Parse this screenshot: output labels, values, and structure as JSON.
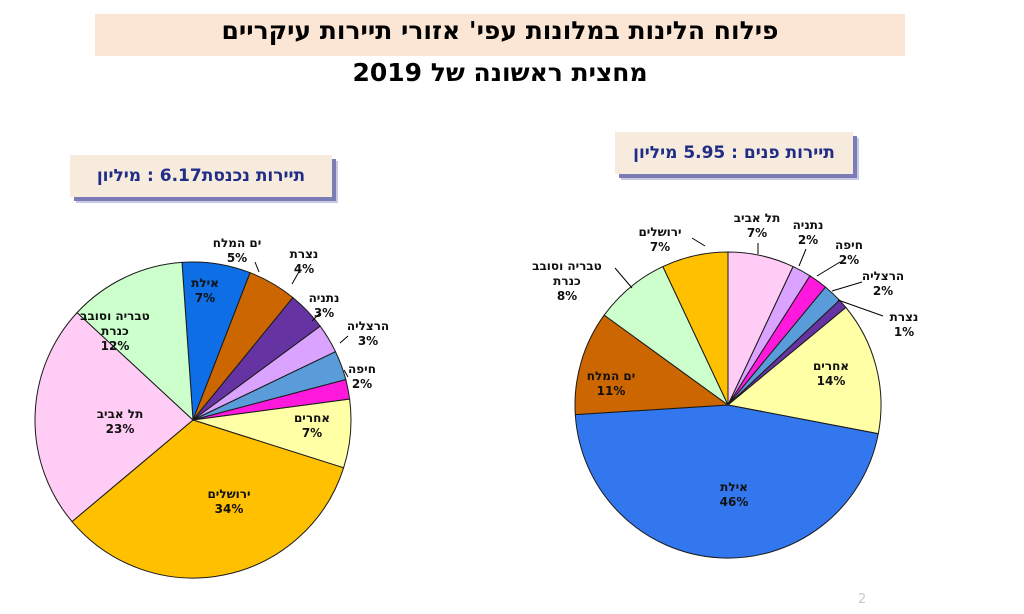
{
  "title": "פילוח הלינות במלונות עפי' אזורי תיירות עיקריים",
  "subtitle": "מחצית ראשונה של 2019",
  "page_number": "2",
  "chart_data": [
    {
      "type": "pie",
      "title": "תיירות נכנסת6.17 :  מיליון",
      "start_category": "אילת",
      "direction": "clockwise",
      "categories": [
        "אילת",
        "ים המלח",
        "נצרת",
        "נתניה",
        "הרצליה",
        "חיפה",
        "אחרים",
        "ירושלים",
        "תל אביב",
        "טבריה וסובב כנרת"
      ],
      "values": [
        7,
        5,
        4,
        3,
        3,
        2,
        7,
        34,
        23,
        12
      ],
      "labels": [
        [
          "אילת",
          "7%"
        ],
        [
          "ים המלח",
          "5%"
        ],
        [
          "נצרת",
          "4%"
        ],
        [
          "נתניה",
          "3%"
        ],
        [
          "הרצליה",
          "3%"
        ],
        [
          "חיפה",
          "2%"
        ],
        [
          "אחרים",
          "7%"
        ],
        [
          "ירושלים",
          "34%"
        ],
        [
          "תל אביב",
          "23%"
        ],
        [
          "טבריה וסובב",
          "כנרת",
          "12%"
        ]
      ],
      "colors": [
        "#0d6ee6",
        "#cc6600",
        "#6633a3",
        "#d9a3ff",
        "#5a9bd9",
        "#ff19dc",
        "#ffffa6",
        "#ffc000",
        "#ffccf5",
        "#ccffcc"
      ]
    },
    {
      "type": "pie",
      "title": "תיירות פנים : 5.95 מיליון",
      "start_category": "תל אביב",
      "direction": "clockwise",
      "categories": [
        "תל אביב",
        "נתניה",
        "חיפה",
        "הרצליה",
        "נצרת",
        "אחרים",
        "אילת",
        "ים המלח",
        "טבריה וסובב כנרת",
        "ירושלים"
      ],
      "values": [
        7,
        2,
        2,
        2,
        1,
        14,
        46,
        11,
        8,
        7
      ],
      "labels": [
        [
          "תל אביב",
          "7%"
        ],
        [
          "נתניה",
          "2%"
        ],
        [
          "חיפה",
          "2%"
        ],
        [
          "הרצליה",
          "2%"
        ],
        [
          "נצרת",
          "1%"
        ],
        [
          "אחרים",
          "14%"
        ],
        [
          "אילת",
          "46%"
        ],
        [
          "ים המלח",
          "11%"
        ],
        [
          "טבריה וסובב",
          "כנרת",
          "8%"
        ],
        [
          "ירושלים",
          "7%"
        ]
      ],
      "colors": [
        "#ffccf5",
        "#d9a3ff",
        "#ff19dc",
        "#5a9bd9",
        "#6633a3",
        "#ffffa6",
        "#3377ee",
        "#cc6600",
        "#ccffcc",
        "#ffc000"
      ]
    }
  ]
}
